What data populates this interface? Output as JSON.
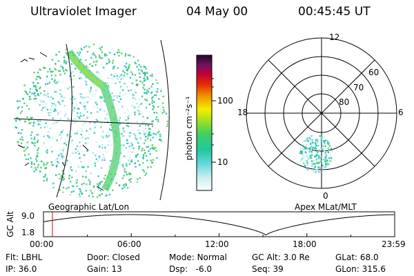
{
  "header": {
    "title": "Ultraviolet Imager",
    "date": "04 May 00",
    "time": "00:45:45 UT"
  },
  "colorbar": {
    "unit_label": "photon cm⁻²s⁻¹",
    "ticks": [
      "100",
      "10"
    ]
  },
  "panels": {
    "geo_label": "Geographic Lat/Lon",
    "polar_label": "Apex MLat/MLT"
  },
  "polar": {
    "mlt": {
      "top": "12",
      "left": "18",
      "right": "6",
      "bottom": "0"
    },
    "mlat": [
      "60",
      "70",
      "80"
    ]
  },
  "altitude_plot": {
    "ylabel": "GC Alt",
    "yticks": [
      "9.0",
      "1.8"
    ],
    "xticks": [
      "00:00",
      "06:00",
      "12:00",
      "18:00",
      "23:59"
    ],
    "marker_color": "#d00000"
  },
  "info": {
    "row1": [
      {
        "label": "Flt:",
        "value": "LBHL"
      },
      {
        "label": "Door:",
        "value": "Closed"
      },
      {
        "label": "Mode:",
        "value": "Normal"
      },
      {
        "label": "GC Alt:",
        "value": "3.0 Re"
      },
      {
        "label": "GLat:",
        "value": "68.0"
      }
    ],
    "row2": [
      {
        "label": "IP:",
        "value": "36.0"
      },
      {
        "label": "Gain:",
        "value": "13"
      },
      {
        "label": "Dsp:",
        "value": "-6.0"
      },
      {
        "label": "Seq:",
        "value": "39"
      },
      {
        "label": "GLon:",
        "value": "315.6"
      }
    ]
  }
}
